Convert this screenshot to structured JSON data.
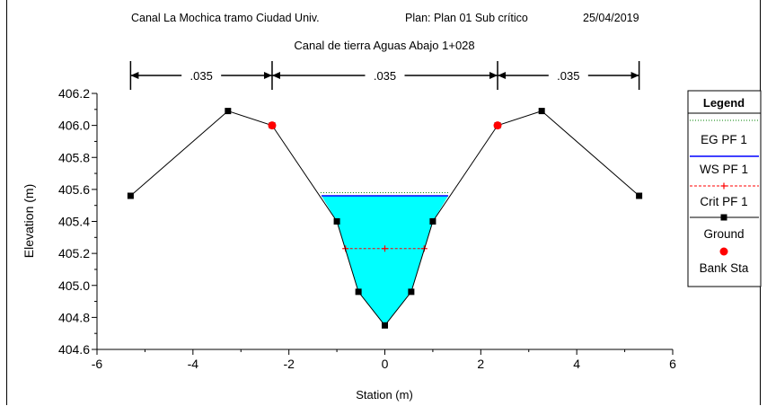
{
  "header": {
    "project": "Canal La Mochica tramo Ciudad Univ.",
    "plan": "Plan: Plan 01 Sub crítico",
    "date": "25/04/2019",
    "subtitle": "Canal de tierra Aguas Abajo 1+028"
  },
  "chart_data": {
    "type": "line",
    "title": "Canal de tierra Aguas Abajo 1+028",
    "xlabel": "Station (m)",
    "ylabel": "Elevation (m)",
    "xlim": [
      -6,
      6
    ],
    "ylim": [
      404.6,
      406.2
    ],
    "xticks": [
      -6,
      -4,
      -2,
      0,
      2,
      4,
      6
    ],
    "yticks": [
      404.6,
      404.8,
      405.0,
      405.2,
      405.4,
      405.6,
      405.8,
      406.0,
      406.2
    ],
    "xtick_labels": [
      "-6",
      "-4",
      "-2",
      "0",
      "2",
      "4",
      "6"
    ],
    "ytick_labels": [
      "404.6",
      "404.8",
      "405.0",
      "405.2",
      "405.4",
      "405.6",
      "405.8",
      "406.0",
      "406.2"
    ],
    "grid": false,
    "legend_placement": "right",
    "legend_title": "Legend",
    "manning": {
      "values": [
        ".035",
        ".035",
        ".035"
      ],
      "breaks": [
        -5.3,
        -2.35,
        2.35,
        5.3
      ]
    },
    "series": [
      {
        "name": "EG PF 1",
        "color": "#008000",
        "style": "dotted",
        "x": [
          -1.34,
          1.34
        ],
        "y": [
          405.58,
          405.58
        ]
      },
      {
        "name": "WS PF 1",
        "color": "#0000ff",
        "style": "solid",
        "x": [
          -1.32,
          1.32
        ],
        "y": [
          405.56,
          405.56
        ]
      },
      {
        "name": "Crit PF 1",
        "color": "#ff0000",
        "style": "dashed-cross",
        "x": [
          -0.82,
          0,
          0.82
        ],
        "y": [
          405.23,
          405.23,
          405.23
        ]
      },
      {
        "name": "Ground",
        "color": "#000000",
        "style": "line-square",
        "x": [
          -5.3,
          -3.27,
          -2.35,
          -1.0,
          -0.55,
          0,
          0.55,
          1.0,
          2.35,
          3.27,
          5.3
        ],
        "y": [
          405.56,
          406.09,
          406.0,
          405.4,
          404.96,
          404.75,
          404.96,
          405.4,
          406.0,
          406.09,
          405.56
        ]
      },
      {
        "name": "Bank Sta",
        "color": "#ff0000",
        "style": "circle",
        "x": [
          -2.35,
          2.35
        ],
        "y": [
          406.0,
          406.0
        ]
      }
    ]
  },
  "colors": {
    "water": "#00ffff",
    "border": "#000000"
  }
}
